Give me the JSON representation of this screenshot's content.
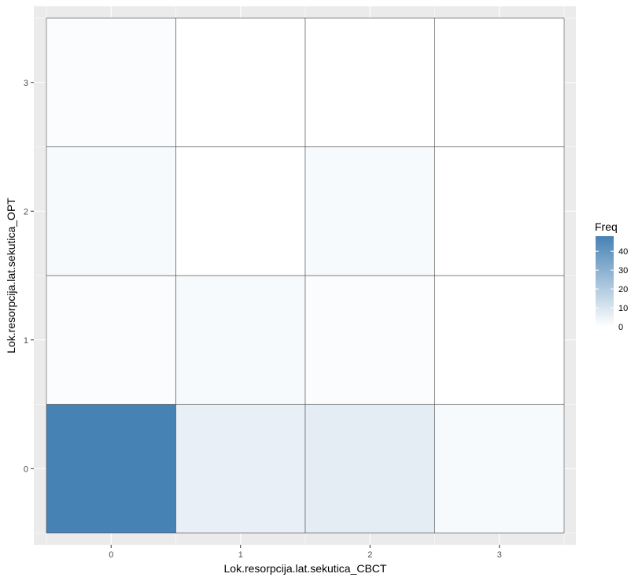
{
  "chart_data": {
    "type": "heatmap",
    "xlabel": "Lok.resorpcija.lat.sekutica_CBCT",
    "ylabel": "Lok.resorpcija.lat.sekutica_OPT",
    "x_categories": [
      "0",
      "1",
      "2",
      "3"
    ],
    "y_categories": [
      "0",
      "1",
      "2",
      "3"
    ],
    "cells": [
      {
        "x": "0",
        "y": "0",
        "value": 48
      },
      {
        "x": "1",
        "y": "0",
        "value": 6
      },
      {
        "x": "2",
        "y": "0",
        "value": 7
      },
      {
        "x": "3",
        "y": "0",
        "value": 2
      },
      {
        "x": "0",
        "y": "1",
        "value": 1
      },
      {
        "x": "1",
        "y": "1",
        "value": 2
      },
      {
        "x": "2",
        "y": "1",
        "value": 1
      },
      {
        "x": "3",
        "y": "1",
        "value": 0
      },
      {
        "x": "0",
        "y": "2",
        "value": 2
      },
      {
        "x": "1",
        "y": "2",
        "value": 0
      },
      {
        "x": "2",
        "y": "2",
        "value": 2
      },
      {
        "x": "3",
        "y": "2",
        "value": 0
      },
      {
        "x": "0",
        "y": "3",
        "value": 1
      },
      {
        "x": "1",
        "y": "3",
        "value": 0
      },
      {
        "x": "2",
        "y": "3",
        "value": 0
      },
      {
        "x": "3",
        "y": "3",
        "value": 0
      }
    ],
    "legend": {
      "title": "Freq",
      "ticks": [
        "0",
        "10",
        "20",
        "30",
        "40"
      ],
      "range": [
        0,
        48
      ],
      "placement": "right"
    },
    "color_low": "#ffffff",
    "color_high": "#4682b4",
    "panel_background": "#ebebeb",
    "grid": true
  }
}
